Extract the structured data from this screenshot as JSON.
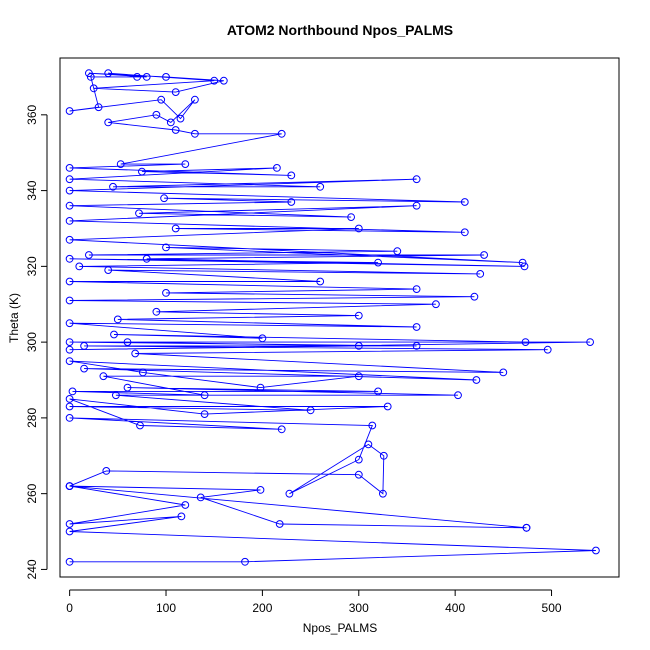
{
  "chart_data": {
    "type": "line",
    "title": "ATOM2 Northbound Npos_PALMS",
    "xlabel": "Npos_PALMS",
    "ylabel": "Theta (K)",
    "xlim": [
      -10,
      570
    ],
    "ylim": [
      238,
      375
    ],
    "xticks": [
      0,
      100,
      200,
      300,
      400,
      500
    ],
    "yticks": [
      240,
      260,
      280,
      300,
      320,
      340,
      360
    ],
    "grid": false,
    "series_color": "#0000ff",
    "marker": "open-circle",
    "series": [
      {
        "points": [
          [
            0,
            242
          ],
          [
            182,
            242
          ],
          [
            546,
            245
          ],
          [
            0,
            250
          ],
          [
            116,
            254
          ],
          [
            0,
            252
          ],
          [
            120,
            257
          ],
          [
            0,
            262
          ],
          [
            198,
            261
          ],
          [
            136,
            259
          ],
          [
            218,
            252
          ],
          [
            474,
            251
          ],
          [
            0,
            262
          ],
          [
            474,
            251
          ],
          [
            0,
            262
          ],
          [
            38,
            266
          ],
          [
            300,
            265
          ],
          [
            325,
            260
          ],
          [
            326,
            270
          ],
          [
            310,
            273
          ],
          [
            228,
            260
          ],
          [
            300,
            269
          ],
          [
            314,
            278
          ],
          [
            0,
            280
          ],
          [
            220,
            277
          ],
          [
            73,
            278
          ],
          [
            0,
            285
          ],
          [
            140,
            281
          ],
          [
            330,
            283
          ],
          [
            0,
            283
          ],
          [
            250,
            282
          ],
          [
            48,
            286
          ],
          [
            403,
            286
          ],
          [
            60,
            288
          ],
          [
            320,
            287
          ],
          [
            3,
            287
          ],
          [
            140,
            286
          ],
          [
            35,
            291
          ],
          [
            300,
            291
          ],
          [
            198,
            288
          ],
          [
            76,
            292
          ],
          [
            0,
            295
          ],
          [
            422,
            290
          ],
          [
            15,
            293
          ],
          [
            450,
            292
          ],
          [
            68,
            297
          ],
          [
            496,
            298
          ],
          [
            15,
            299
          ],
          [
            360,
            299
          ],
          [
            0,
            300
          ],
          [
            540,
            300
          ],
          [
            0,
            298
          ],
          [
            300,
            299
          ],
          [
            60,
            300
          ],
          [
            473,
            300
          ],
          [
            46,
            302
          ],
          [
            200,
            301
          ],
          [
            0,
            305
          ],
          [
            360,
            304
          ],
          [
            50,
            306
          ],
          [
            300,
            307
          ],
          [
            90,
            308
          ],
          [
            380,
            310
          ],
          [
            0,
            311
          ],
          [
            420,
            312
          ],
          [
            100,
            313
          ],
          [
            360,
            314
          ],
          [
            0,
            316
          ],
          [
            260,
            316
          ],
          [
            40,
            319
          ],
          [
            426,
            318
          ],
          [
            10,
            320
          ],
          [
            320,
            321
          ],
          [
            0,
            322
          ],
          [
            472,
            320
          ],
          [
            80,
            322
          ],
          [
            430,
            323
          ],
          [
            20,
            323
          ],
          [
            340,
            324
          ],
          [
            100,
            325
          ],
          [
            470,
            321
          ],
          [
            0,
            327
          ],
          [
            300,
            330
          ],
          [
            110,
            330
          ],
          [
            410,
            329
          ],
          [
            0,
            332
          ],
          [
            360,
            336
          ],
          [
            72,
            334
          ],
          [
            292,
            333
          ],
          [
            0,
            336
          ],
          [
            230,
            337
          ],
          [
            98,
            338
          ],
          [
            410,
            337
          ],
          [
            0,
            340
          ],
          [
            360,
            343
          ],
          [
            45,
            341
          ],
          [
            260,
            341
          ],
          [
            0,
            343
          ],
          [
            215,
            346
          ],
          [
            75,
            345
          ],
          [
            230,
            344
          ],
          [
            0,
            346
          ],
          [
            120,
            347
          ],
          [
            53,
            347
          ],
          [
            220,
            355
          ],
          [
            130,
            355
          ],
          [
            110,
            356
          ],
          [
            40,
            358
          ],
          [
            90,
            360
          ],
          [
            105,
            358
          ],
          [
            130,
            364
          ],
          [
            115,
            359
          ],
          [
            95,
            364
          ],
          [
            0,
            361
          ],
          [
            30,
            362
          ],
          [
            22,
            370
          ],
          [
            80,
            370
          ],
          [
            20,
            371
          ],
          [
            100,
            370
          ],
          [
            160,
            369
          ],
          [
            110,
            366
          ],
          [
            25,
            367
          ],
          [
            150,
            369
          ],
          [
            40,
            371
          ],
          [
            70,
            370
          ]
        ]
      }
    ]
  }
}
